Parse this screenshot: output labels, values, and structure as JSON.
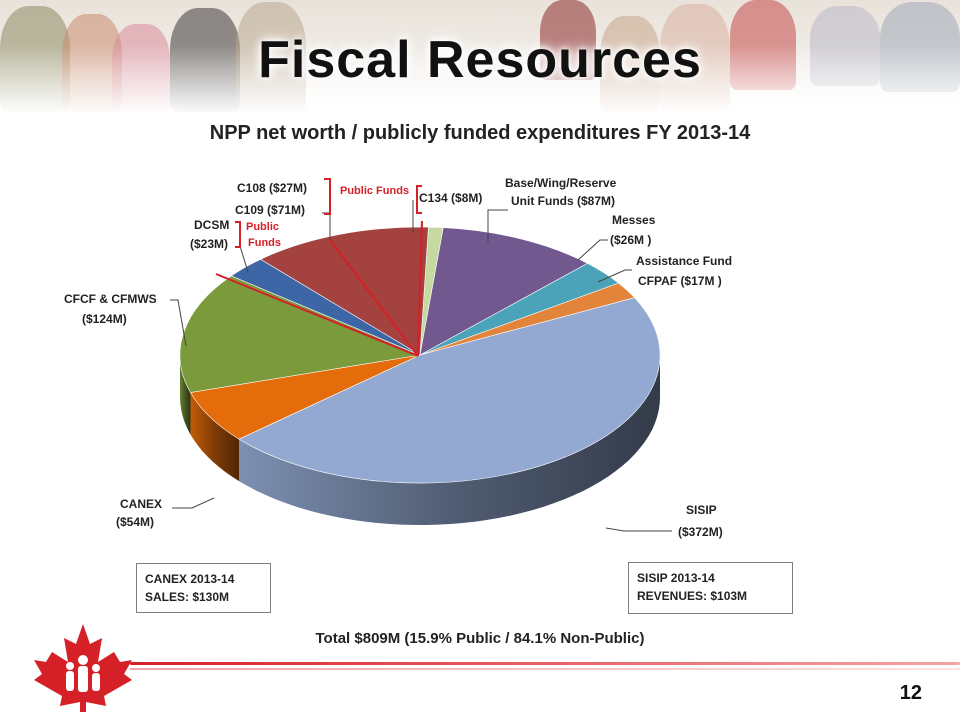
{
  "header": {
    "title": "Fiscal Resources"
  },
  "chart_data": {
    "type": "pie",
    "title": "NPP net worth / publicly funded expenditures FY 2013-14",
    "slices": [
      {
        "label": "C134 ($8M)",
        "value": 8,
        "color": "#c5d9a0"
      },
      {
        "label": "Base/Wing/Reserve Unit Funds ($87M)",
        "value": 87,
        "color": "#71588f"
      },
      {
        "label": "Messes ($26M )",
        "value": 26,
        "color": "#4aa3b8"
      },
      {
        "label": "Assistance Fund CFPAF ($17M )",
        "value": 17,
        "color": "#e2843a"
      },
      {
        "label": "SISIP ($372M)",
        "value": 372,
        "color": "#93a9d1"
      },
      {
        "label": "CANEX ($54M)",
        "value": 54,
        "color": "#e46c0a"
      },
      {
        "label": "CFCF & CFMWS ($124M)",
        "value": 124,
        "color": "#7b9a3c"
      },
      {
        "label": "DCSM ($23M)",
        "value": 23,
        "color": "#3c66a6"
      },
      {
        "label": "C108 ($27M) C109 ($71M)",
        "value": 98,
        "color": "#a3423f"
      }
    ],
    "annotations": {
      "public_funds_top": "Public Funds",
      "public_funds_side_1": "Public",
      "public_funds_side_2": "Funds"
    },
    "total": "Total $809M (15.9% Public / 84.1% Non-Public)"
  },
  "labels": {
    "c108": "C108 ($27M)",
    "c109": "C109 ($71M)",
    "c134": "C134 ($8M)",
    "base_1": "Base/Wing/Reserve",
    "base_2": "Unit Funds ($87M)",
    "messes_1": "Messes",
    "messes_2": "($26M )",
    "assist_1": "Assistance Fund",
    "assist_2": "CFPAF ($17M )",
    "dcsm_1": "DCSM",
    "dcsm_2": "($23M)",
    "cfcf_1": "CFCF & CFMWS",
    "cfcf_2": "($124M)",
    "canex_1": "CANEX",
    "canex_2": "($54M)",
    "sisip_1": "SISIP",
    "sisip_2": "($372M)"
  },
  "boxes": {
    "canex_line1": "CANEX  2013-14",
    "canex_line2": "SALES:  $130M",
    "sisip_line1": "SISIP 2013-14",
    "sisip_line2": "REVENUES:  $103M"
  },
  "footer": {
    "page_number": "12"
  },
  "colors": {
    "accent_red": "#d62027",
    "label_text": "#222222"
  }
}
